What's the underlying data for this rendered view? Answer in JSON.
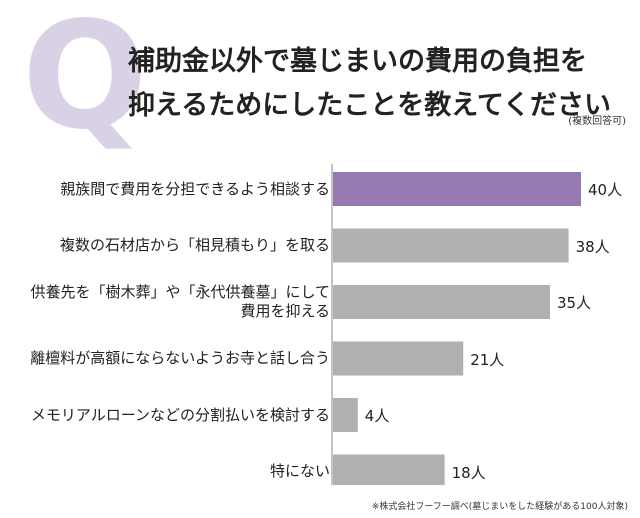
{
  "header": {
    "q_mark": "Q",
    "title_lines": [
      "補助金以外で墓じまいの費用の負担を",
      "抑えるためにしたことを教えてください"
    ],
    "note": "(複数回答可)"
  },
  "footnote": "※株式会社フーフー調べ(墓じまいをした経験がある100人対象)",
  "colors": {
    "highlight": "#9679b1",
    "bar": "#b0b0b0"
  },
  "chart_data": {
    "type": "bar",
    "orientation": "horizontal",
    "title": "補助金以外で墓じまいの費用の負担を抑えるためにしたことを教えてください",
    "categories": [
      [
        "親族間で費用を分担できるよう相談する"
      ],
      [
        "複数の石材店から「相見積もり」を取る"
      ],
      [
        "供養先を「樹木葬」や「永代供養墓」にして",
        "費用を抑える"
      ],
      [
        "離檀料が高額にならないようお寺と話し合う"
      ],
      [
        "メモリアルローンなどの分割払いを検討する"
      ],
      [
        "特にない"
      ]
    ],
    "values": [
      40,
      38,
      35,
      21,
      4,
      18
    ],
    "value_labels": [
      "40人",
      "38人",
      "35人",
      "21人",
      "4人",
      "18人"
    ],
    "highlight_index": 0,
    "xlim": [
      0,
      40
    ],
    "grid": false
  }
}
